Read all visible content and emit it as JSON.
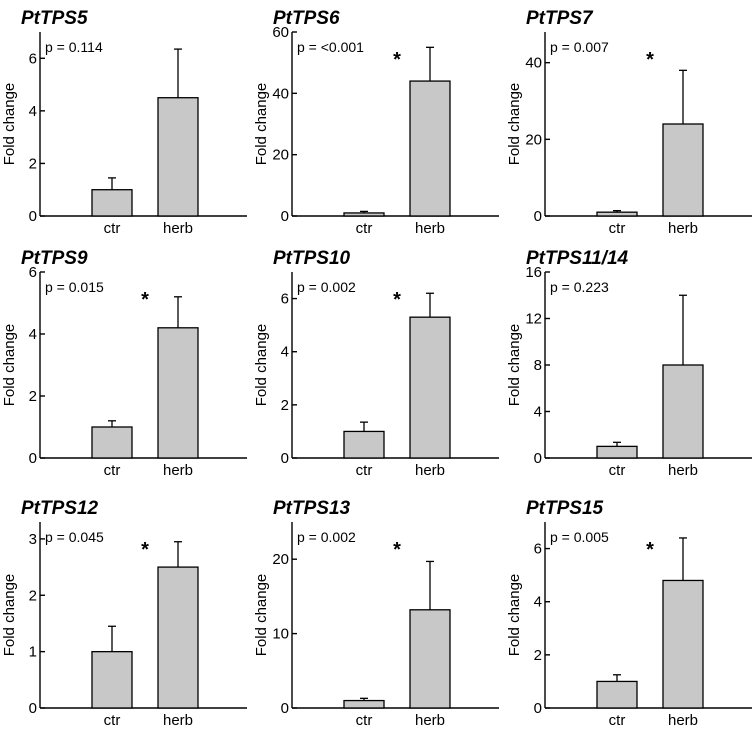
{
  "chart_data": [
    {
      "type": "bar",
      "title": "PtTPS5",
      "pvalue": "p = 0.114",
      "significance": "",
      "ylabel": "Fold change",
      "ylim": [
        0,
        7
      ],
      "yticks": [
        0,
        2,
        4,
        6
      ],
      "categories": [
        "ctr",
        "herb"
      ],
      "values": [
        1.0,
        4.5
      ],
      "errors": [
        0.45,
        1.85
      ]
    },
    {
      "type": "bar",
      "title": "PtTPS6",
      "pvalue": "p = <0.001",
      "significance": "*",
      "ylabel": "Fold change",
      "ylim": [
        0,
        60
      ],
      "yticks": [
        0,
        20,
        40,
        60
      ],
      "categories": [
        "ctr",
        "herb"
      ],
      "values": [
        1.0,
        44
      ],
      "errors": [
        0.5,
        11
      ]
    },
    {
      "type": "bar",
      "title": "PtTPS7",
      "pvalue": "p = 0.007",
      "significance": "*",
      "ylabel": "Fold change",
      "ylim": [
        0,
        48
      ],
      "yticks": [
        0,
        20,
        40
      ],
      "categories": [
        "ctr",
        "herb"
      ],
      "values": [
        1.0,
        24
      ],
      "errors": [
        0.4,
        14
      ]
    },
    {
      "type": "bar",
      "title": "PtTPS9",
      "pvalue": "p = 0.015",
      "significance": "*",
      "ylabel": "Fold change",
      "ylim": [
        0,
        6
      ],
      "yticks": [
        0,
        2,
        4,
        6
      ],
      "categories": [
        "ctr",
        "herb"
      ],
      "values": [
        1.0,
        4.2
      ],
      "errors": [
        0.2,
        1.0
      ]
    },
    {
      "type": "bar",
      "title": "PtTPS10",
      "pvalue": "p = 0.002",
      "significance": "*",
      "ylabel": "Fold change",
      "ylim": [
        0,
        7
      ],
      "yticks": [
        0,
        2,
        4,
        6
      ],
      "categories": [
        "ctr",
        "herb"
      ],
      "values": [
        1.0,
        5.3
      ],
      "errors": [
        0.35,
        0.9
      ]
    },
    {
      "type": "bar",
      "title": "PtTPS11/14",
      "pvalue": "p = 0.223",
      "significance": "",
      "ylabel": "Fold change",
      "ylim": [
        0,
        16
      ],
      "yticks": [
        0,
        4,
        8,
        12,
        16
      ],
      "categories": [
        "ctr",
        "herb"
      ],
      "values": [
        1.0,
        8.0
      ],
      "errors": [
        0.35,
        6.0
      ]
    },
    {
      "type": "bar",
      "title": "PtTPS12",
      "pvalue": "p = 0.045",
      "significance": "*",
      "ylabel": "Fold change",
      "ylim": [
        0,
        3.3
      ],
      "yticks": [
        0,
        1,
        2,
        3
      ],
      "categories": [
        "ctr",
        "herb"
      ],
      "values": [
        1.0,
        2.5
      ],
      "errors": [
        0.45,
        0.45
      ]
    },
    {
      "type": "bar",
      "title": "PtTPS13",
      "pvalue": "p = 0.002",
      "significance": "*",
      "ylabel": "Fold change",
      "ylim": [
        0,
        25
      ],
      "yticks": [
        0,
        10,
        20
      ],
      "categories": [
        "ctr",
        "herb"
      ],
      "values": [
        1.0,
        13.2
      ],
      "errors": [
        0.3,
        6.5
      ]
    },
    {
      "type": "bar",
      "title": "PtTPS15",
      "pvalue": "p = 0.005",
      "significance": "*",
      "ylabel": "Fold change",
      "ylim": [
        0,
        7
      ],
      "yticks": [
        0,
        2,
        4,
        6
      ],
      "categories": [
        "ctr",
        "herb"
      ],
      "values": [
        1.0,
        4.8
      ],
      "errors": [
        0.25,
        1.6
      ]
    }
  ]
}
